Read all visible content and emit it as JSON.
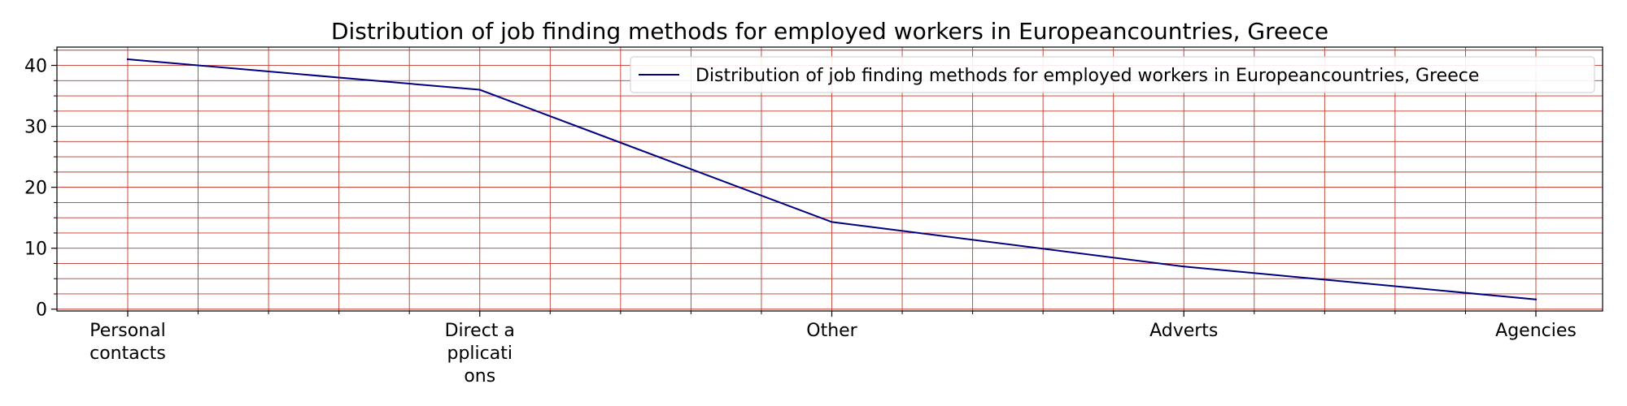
{
  "chart_data": {
    "type": "line",
    "title": "Distribution of job finding methods for employed workers in Europeancountries, Greece",
    "xlabel": "",
    "ylabel": "",
    "categories": [
      "Personal contacts",
      "Direct applications",
      "Other",
      "Adverts",
      "Agencies"
    ],
    "category_tick_lines": [
      [
        "Personal",
        "contacts"
      ],
      [
        "Direct a",
        "pplicati",
        "ons"
      ],
      [
        "Other"
      ],
      [
        "Adverts"
      ],
      [
        "Agencies"
      ]
    ],
    "series": [
      {
        "name": "Distribution of job finding methods for employed workers in Europeancountries, Greece",
        "values": [
          41.0,
          36.0,
          14.3,
          7.0,
          1.6
        ],
        "color": "#000080"
      }
    ],
    "ylim": [
      -0.3,
      43
    ],
    "yticks": [
      0,
      10,
      20,
      30,
      40
    ],
    "grid": true,
    "grid_color": "#c0392b",
    "legend_position": "upper right"
  }
}
